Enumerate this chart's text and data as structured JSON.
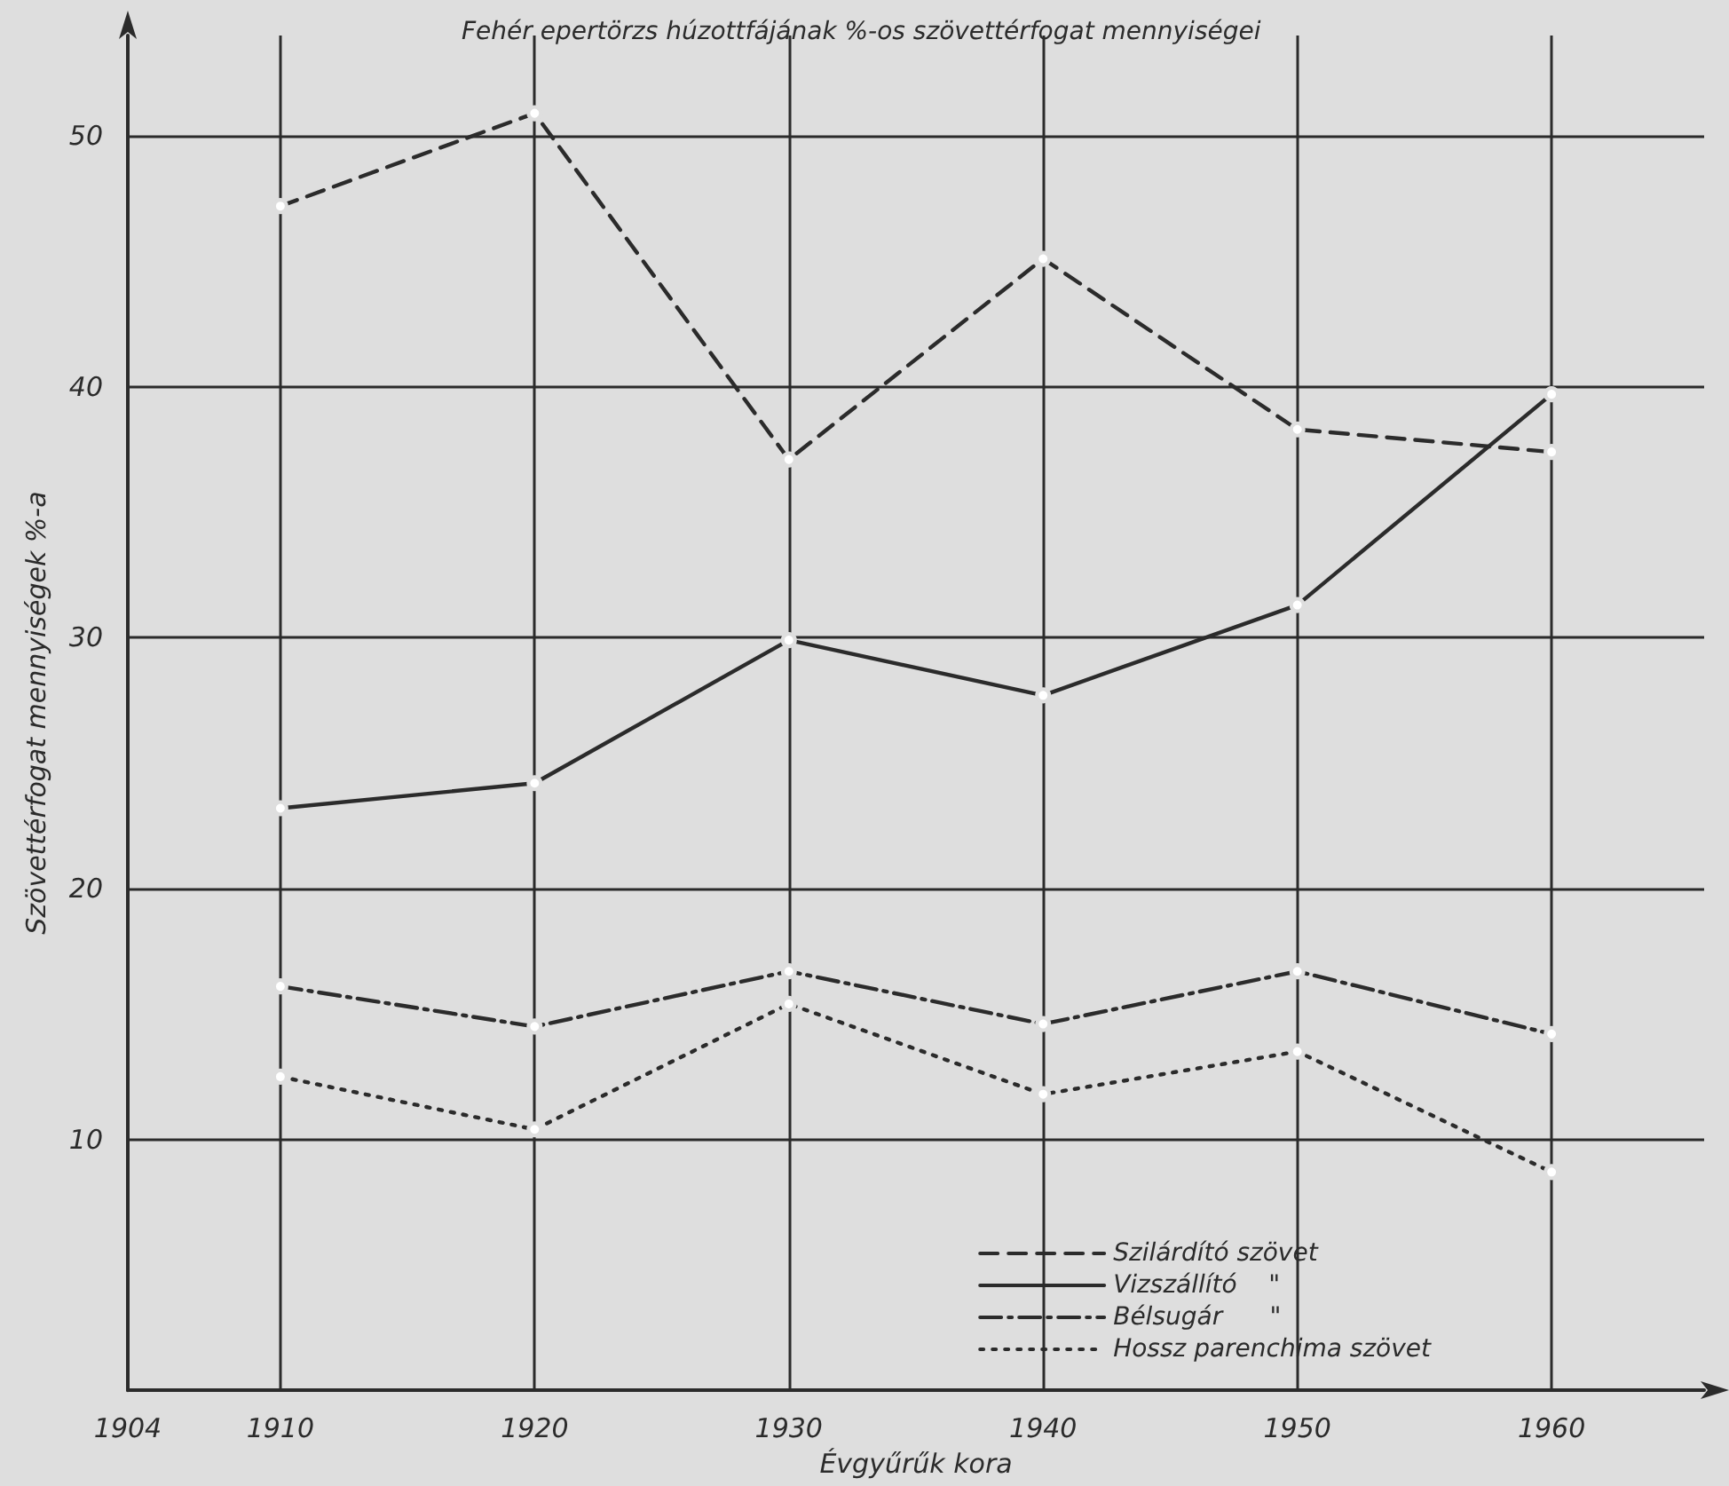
{
  "chart_data": {
    "type": "line",
    "title": "Fehér epertörzs húzottfájának %-os szövettérfogat mennyiségei",
    "xlabel": "Évgyűrűk kora",
    "ylabel": "Szövettérfogat mennyiségek %-a",
    "x": [
      1910,
      1920,
      1930,
      1940,
      1950,
      1960
    ],
    "xlim": [
      1904,
      1966
    ],
    "xticks": [
      1904,
      1910,
      1920,
      1930,
      1940,
      1950,
      1960
    ],
    "ylim": [
      0,
      54
    ],
    "yticks": [
      10,
      20,
      30,
      40,
      50
    ],
    "grid": true,
    "legend": "bottom right",
    "marker": "circle",
    "series": [
      {
        "name": "Szilárdító szövet",
        "color": "#2b2b2b",
        "line_style": "dashed",
        "values": [
          47.2,
          50.9,
          37.1,
          45.1,
          38.3,
          37.4
        ]
      },
      {
        "name": "Vizszállító    \"",
        "color": "#2b2b2b",
        "line_style": "solid",
        "values": [
          23.2,
          24.2,
          29.9,
          27.7,
          31.3,
          39.7
        ]
      },
      {
        "name": "Bélsugár      \"",
        "color": "#2b2b2b",
        "line_style": "dashdot",
        "values": [
          16.1,
          14.5,
          16.7,
          14.6,
          16.7,
          14.2
        ]
      },
      {
        "name": "Hossz parenchima szövet",
        "color": "#2b2b2b",
        "line_style": "dotted",
        "values": [
          12.5,
          10.4,
          15.4,
          11.8,
          13.5,
          8.7
        ]
      }
    ]
  }
}
